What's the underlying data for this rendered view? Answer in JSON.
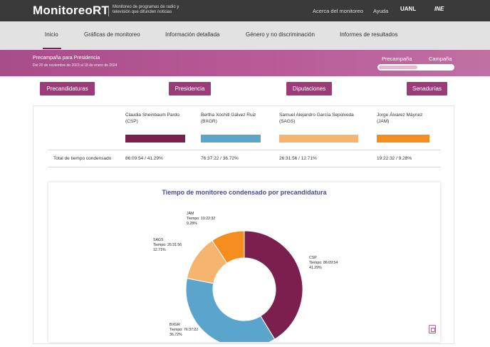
{
  "header": {
    "brand": "MonitoreoRT",
    "subtitle": "Monitoreo de programas de radio y televisión que difunden noticias",
    "links": [
      "Acerca del monitoreo",
      "Ayuda"
    ],
    "logos": [
      "UANL",
      "INE"
    ]
  },
  "nav": {
    "items": [
      "Inicio",
      "Gráficas de monitoreo",
      "Información detallada",
      "Género y no discriminación",
      "Informes de resultados"
    ],
    "active": "Inicio"
  },
  "band": {
    "title": "Precampaña para Presidencia",
    "date_range": "Del 20 de noviembre de 2023 al 18 de enero de 2024",
    "toggle": [
      "Precampaña",
      "Campaña"
    ]
  },
  "categories": [
    "Precandidaturas",
    "Presidencia",
    "Diputaciones",
    "Senadurías"
  ],
  "table": {
    "row_label": "Total de tiempo condensado",
    "candidates": [
      {
        "name": "Claudia Sheinbaum Pardo",
        "abbr": "(CSP)",
        "total": "86:09:54 / 41.29%",
        "color": "#7b1f4f"
      },
      {
        "name": "Bertha Xóchitl Gálvez Ruiz",
        "abbr": "(BXGR)",
        "total": "76:37:22 / 36.72%",
        "color": "#5ba4cb"
      },
      {
        "name": "Samuel Alejandro García Sepúlveda",
        "abbr": "(SAGS)",
        "total": "26:31:56 / 12.71%",
        "color": "#f5b56f"
      },
      {
        "name": "Jorge Álvarez Máynez",
        "abbr": "(JAM)",
        "total": "19:22:32 / 9.28%",
        "color": "#f58c1e"
      }
    ]
  },
  "chart_data": {
    "type": "pie",
    "title": "Tiempo de monitoreo condensado por precandidatura",
    "categories": [
      "CSP",
      "BXGR",
      "SAGS",
      "JAM"
    ],
    "values": [
      41.29,
      36.72,
      12.71,
      9.28
    ],
    "times": [
      "86:09:54",
      "76:37:22",
      "26:31:56",
      "19:22:32"
    ],
    "labels": [
      [
        "CSP",
        "Tiempo: 86:09:54",
        "41.29%"
      ],
      [
        "BXGR",
        "Tiempo: 76:37:22",
        "36.72%"
      ],
      [
        "SAGS",
        "Tiempo: 26:31:56",
        "12.71%"
      ],
      [
        "JAM",
        "Tiempo: 19:22:32",
        "9.28%"
      ]
    ],
    "colors": [
      "#7b1f4f",
      "#5ba4cb",
      "#f5b56f",
      "#f58c1e"
    ]
  }
}
